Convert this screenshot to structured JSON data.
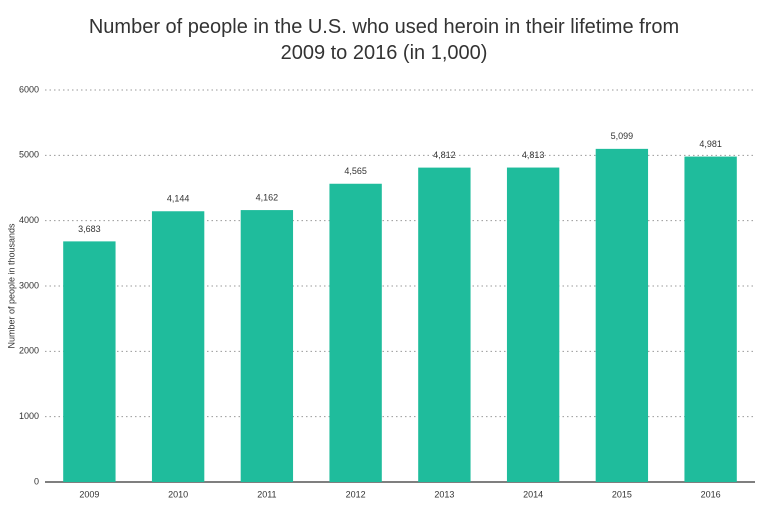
{
  "chart_data": {
    "type": "bar",
    "title": "Number of people in the U.S. who used heroin in their lifetime from 2009 to 2016 (in 1,000)",
    "y_label": "Number of people in thousands",
    "categories": [
      "2009",
      "2010",
      "2011",
      "2012",
      "2013",
      "2014",
      "2015",
      "2016"
    ],
    "values": [
      3683,
      4144,
      4162,
      4565,
      4812,
      4813,
      5099,
      4981
    ],
    "value_labels": [
      "3,683",
      "4,144",
      "4,162",
      "4,565",
      "4,812",
      "4,813",
      "5,099",
      "4,981"
    ],
    "color": "#1fbc9c",
    "ylim": [
      0,
      6000
    ],
    "yticks": [
      0,
      1000,
      2000,
      3000,
      4000,
      5000,
      6000
    ],
    "grid": true
  }
}
